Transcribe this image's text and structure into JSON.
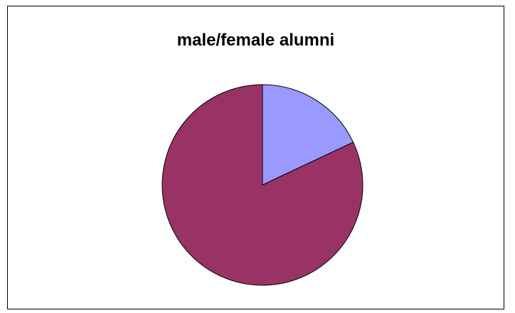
{
  "chart_data": {
    "type": "pie",
    "title": "male/female alumni",
    "slices": [
      {
        "value": 18,
        "color": "#9999ff"
      },
      {
        "value": 82,
        "color": "#993366"
      }
    ],
    "start_angle_deg": 0,
    "direction": "clockwise",
    "legend": "none"
  }
}
